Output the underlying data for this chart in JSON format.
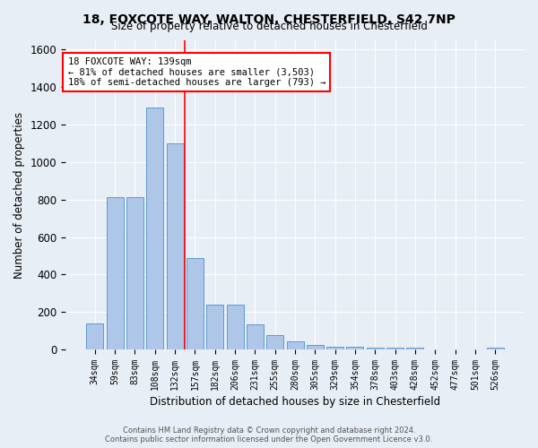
{
  "title_line1": "18, FOXCOTE WAY, WALTON, CHESTERFIELD, S42 7NP",
  "title_line2": "Size of property relative to detached houses in Chesterfield",
  "xlabel": "Distribution of detached houses by size in Chesterfield",
  "ylabel": "Number of detached properties",
  "categories": [
    "34sqm",
    "59sqm",
    "83sqm",
    "108sqm",
    "132sqm",
    "157sqm",
    "182sqm",
    "206sqm",
    "231sqm",
    "255sqm",
    "280sqm",
    "305sqm",
    "329sqm",
    "354sqm",
    "378sqm",
    "403sqm",
    "428sqm",
    "452sqm",
    "477sqm",
    "501sqm",
    "526sqm"
  ],
  "values": [
    140,
    815,
    815,
    1290,
    1100,
    490,
    240,
    240,
    135,
    75,
    45,
    25,
    15,
    15,
    12,
    12,
    10,
    0,
    0,
    0,
    10
  ],
  "bar_color": "#aec6e8",
  "bar_edge_color": "#5b9bd5",
  "vline_color": "red",
  "annotation_text": "18 FOXCOTE WAY: 139sqm\n← 81% of detached houses are smaller (3,503)\n18% of semi-detached houses are larger (793) →",
  "annotation_box_color": "white",
  "annotation_box_edge": "red",
  "footer_line1": "Contains HM Land Registry data © Crown copyright and database right 2024.",
  "footer_line2": "Contains public sector information licensed under the Open Government Licence v3.0.",
  "background_color": "#e8eef5",
  "ylim": [
    0,
    1650
  ],
  "grid_color": "white",
  "yticks": [
    0,
    200,
    400,
    600,
    800,
    1000,
    1200,
    1400,
    1600
  ]
}
